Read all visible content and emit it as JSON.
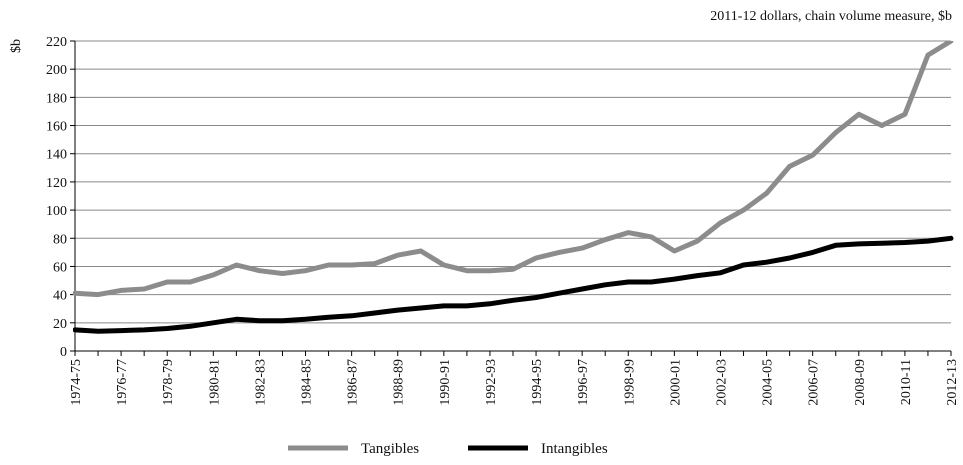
{
  "chart_data": {
    "type": "line",
    "title": "",
    "subtitle": "2011-12 dollars, chain volume measure, $b",
    "xlabel": "",
    "ylabel": "$b",
    "ylim": [
      0,
      220
    ],
    "yticks": [
      0,
      20,
      40,
      60,
      80,
      100,
      120,
      140,
      160,
      180,
      200,
      220
    ],
    "grid": true,
    "legend_position": "bottom",
    "x": [
      "1974-75",
      "1975-76",
      "1976-77",
      "1977-78",
      "1978-79",
      "1979-80",
      "1980-81",
      "1981-82",
      "1982-83",
      "1983-84",
      "1984-85",
      "1985-86",
      "1986-87",
      "1987-88",
      "1988-89",
      "1989-90",
      "1990-91",
      "1991-92",
      "1992-93",
      "1993-94",
      "1994-95",
      "1995-96",
      "1996-97",
      "1997-98",
      "1998-99",
      "1999-00",
      "2000-01",
      "2001-02",
      "2002-03",
      "2003-04",
      "2004-05",
      "2005-06",
      "2006-07",
      "2007-08",
      "2008-09",
      "2009-10",
      "2010-11",
      "2011-12",
      "2012-13"
    ],
    "xtick_labels": [
      "1974-75",
      "1976-77",
      "1978-79",
      "1980-81",
      "1982-83",
      "1984-85",
      "1986-87",
      "1988-89",
      "1990-91",
      "1992-93",
      "1994-95",
      "1996-97",
      "1998-99",
      "2000-01",
      "2002-03",
      "2004-05",
      "2006-07",
      "2008-09",
      "2010-11",
      "2012-13"
    ],
    "series": [
      {
        "name": "Tangibles",
        "color": "#8c8c8c",
        "values": [
          41,
          40,
          43,
          44,
          49,
          49,
          54,
          61,
          57,
          55,
          57,
          61,
          61,
          62,
          68,
          71,
          61,
          57,
          57,
          58,
          66,
          70,
          73,
          79,
          84,
          81,
          71,
          78,
          91,
          100,
          112,
          131,
          139,
          155,
          168,
          160,
          168,
          210,
          226
        ]
      },
      {
        "name": "Intangibles",
        "color": "#000000",
        "values": [
          15,
          14,
          14.5,
          15,
          16,
          17.5,
          20,
          22.5,
          21.5,
          21.5,
          22.5,
          24,
          25,
          27,
          29,
          30.5,
          32,
          32,
          33.5,
          36,
          38,
          41,
          44,
          47,
          49,
          49,
          51,
          53.5,
          55.5,
          61,
          63,
          66,
          70,
          75,
          76,
          76.5,
          77,
          78,
          80
        ]
      }
    ]
  }
}
